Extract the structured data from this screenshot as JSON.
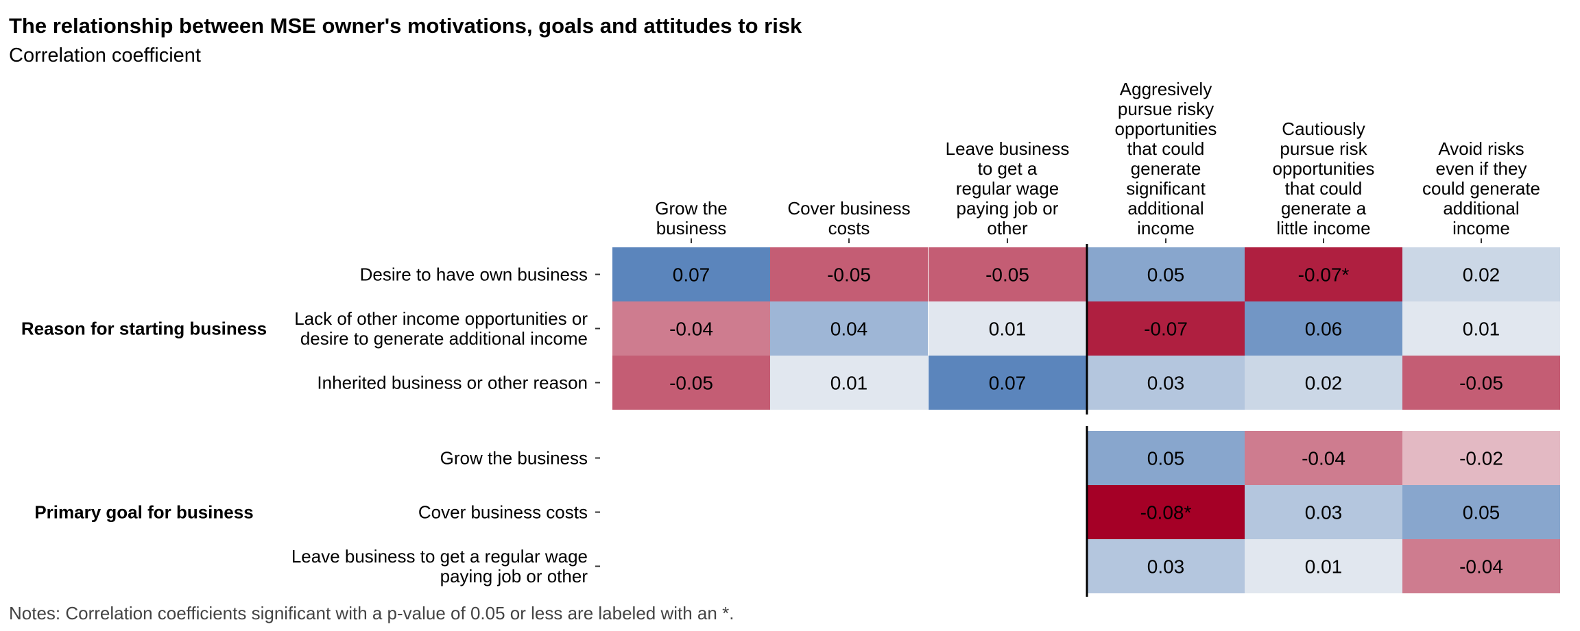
{
  "chart_data": {
    "type": "heatmap",
    "title": "The relationship between MSE owner's motivations, goals and attitudes to risk",
    "subtitle": "Correlation coefficient",
    "note": "Notes: Correlation coefficients significant with a p-value of 0.05 or less are labeled with an *.",
    "columns": [
      {
        "lines": [
          "Grow the",
          "business"
        ]
      },
      {
        "lines": [
          "Cover business",
          "costs"
        ]
      },
      {
        "lines": [
          "Leave business",
          "to get a",
          "regular wage",
          "paying job or",
          "other"
        ]
      },
      {
        "lines": [
          "Aggresively",
          "pursue risky",
          "opportunities",
          "that could",
          "generate",
          "significant",
          "additional",
          "income"
        ]
      },
      {
        "lines": [
          "Cautiously",
          "pursue risk",
          "opportunities",
          "that could",
          "generate a",
          "little income"
        ]
      },
      {
        "lines": [
          "Avoid risks",
          "even if they",
          "could generate",
          "additional",
          "income"
        ]
      }
    ],
    "groups": [
      {
        "label": "Reason for starting business",
        "rows": [
          {
            "lines": [
              "Desire to have own business"
            ],
            "values": [
              0.07,
              -0.05,
              -0.05,
              0.05,
              -0.07,
              0.02
            ],
            "labels": [
              "0.07",
              "-0.05",
              "-0.05",
              "0.05",
              "-0.07*",
              "0.02"
            ]
          },
          {
            "lines": [
              "Lack of other income opportunities or",
              "desire to generate additional income"
            ],
            "values": [
              -0.04,
              0.04,
              0.01,
              -0.07,
              0.06,
              0.01
            ],
            "labels": [
              "-0.04",
              "0.04",
              "0.01",
              "-0.07",
              "0.06",
              "0.01"
            ]
          },
          {
            "lines": [
              "Inherited business or other reason"
            ],
            "values": [
              -0.05,
              0.01,
              0.07,
              0.03,
              0.02,
              -0.05
            ],
            "labels": [
              "-0.05",
              "0.01",
              "0.07",
              "0.03",
              "0.02",
              "-0.05"
            ]
          }
        ]
      },
      {
        "label": "Primary goal for business",
        "rows": [
          {
            "lines": [
              "Grow the business"
            ],
            "values": [
              null,
              null,
              null,
              0.05,
              -0.04,
              -0.02
            ],
            "labels": [
              "",
              "",
              "",
              "0.05",
              "-0.04",
              "-0.02"
            ]
          },
          {
            "lines": [
              "Cover business costs"
            ],
            "values": [
              null,
              null,
              null,
              -0.08,
              0.03,
              0.05
            ],
            "labels": [
              "",
              "",
              "",
              "-0.08*",
              "0.03",
              "0.05"
            ]
          },
          {
            "lines": [
              "Leave business to get a regular wage",
              "paying job or other"
            ],
            "values": [
              null,
              null,
              null,
              0.03,
              0.01,
              -0.04
            ],
            "labels": [
              "",
              "",
              "",
              "0.03",
              "0.01",
              "-0.04"
            ]
          }
        ]
      }
    ],
    "color_scale": {
      "negative": "#a50026",
      "neutral": "#f7f7f7",
      "positive": "#4575b4",
      "range": [
        -0.08,
        0.08
      ]
    },
    "divider": "between column 3 and column 4"
  }
}
